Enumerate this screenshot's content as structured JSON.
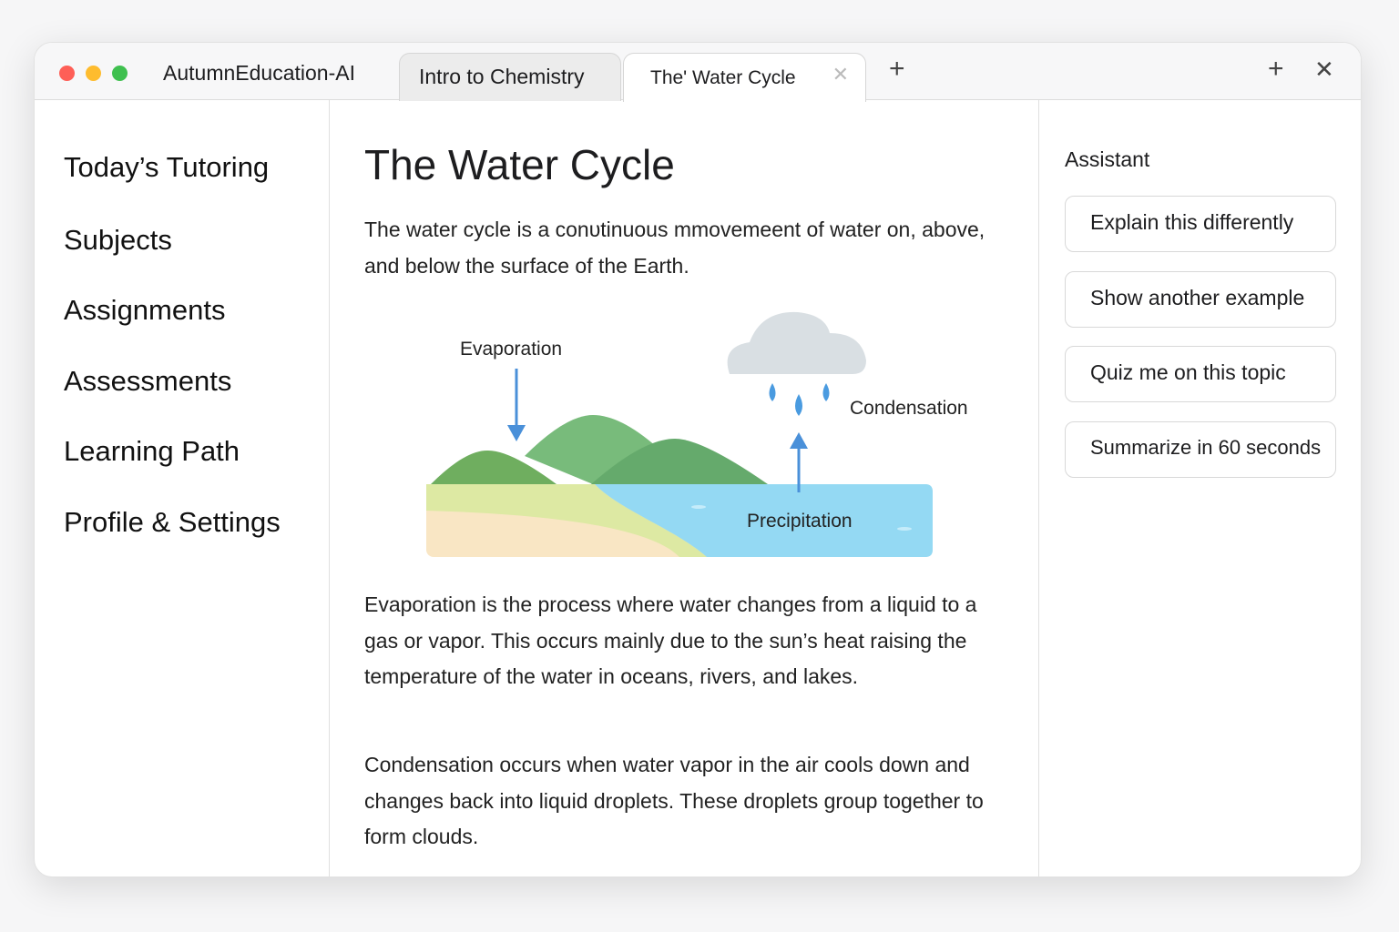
{
  "window": {
    "app_name": "AutumnEducation-AI",
    "controls": [
      "close",
      "minimize",
      "maximize"
    ]
  },
  "tabs": [
    {
      "label": "Intro to Chemistry",
      "active": false
    },
    {
      "label": "The' Water Cycle",
      "active": true,
      "close_icon": "x-icon"
    }
  ],
  "sidebar": {
    "items": [
      {
        "label": "Today’s Tutoring"
      },
      {
        "label": "Subjects"
      },
      {
        "label": "Assignments"
      },
      {
        "label": "Assessments"
      },
      {
        "label": "Learning Path"
      },
      {
        "label": "Profile & Settings"
      }
    ]
  },
  "main": {
    "title": "The Water Cycle",
    "intro": "The water cycle is a conυtinuous mmovemeent of water on, above, and below the surface of the Earth.",
    "diagram": {
      "labels": {
        "evaporation": "Evaporation",
        "condensation": "Condensation",
        "precipitation": "Precipitation"
      }
    },
    "paragraphs": [
      "Evaporation is the process where water changes from a liquid to a gas or vapor. This occurs mainly due to the sun’s heat raising the temperature of the water in oceans, rivers, and lakes.",
      "Condensation occurs when water vapor in the air cools down and changes back into liquid droplets. These droplets group together to form clouds."
    ]
  },
  "assistant": {
    "title": "Assistant",
    "actions": [
      {
        "label": "Explain this differently"
      },
      {
        "label": "Show another example"
      },
      {
        "label": "Quiz me on this topic"
      },
      {
        "label": "Summarize in 60 seconds"
      }
    ]
  },
  "colors": {
    "close": "#fe5f57",
    "minimize": "#febc2e",
    "maximize": "#28c840",
    "water": "#8fd8f2",
    "arrow": "#4a90d9"
  }
}
